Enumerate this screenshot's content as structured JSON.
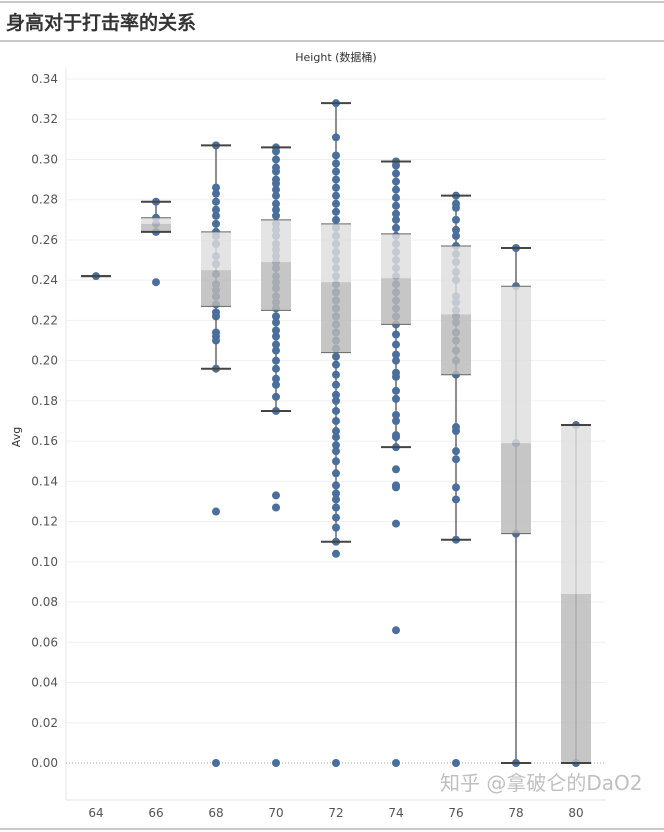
{
  "title": "身高对于打击率的关系",
  "watermark": "知乎 @拿破仑的DaO2",
  "colors": {
    "dot": "#4a6f9c",
    "box_upper": "#dedede",
    "box_lower": "#b9b9b9",
    "whisker": "#444444"
  },
  "chart_data": {
    "type": "boxplot",
    "title": "身高对于打击率的关系",
    "xlabel": "Height (数据桶)",
    "ylabel": "Avg",
    "ylim": [
      -0.02,
      0.34
    ],
    "yticks": [
      "0.00",
      "0.02",
      "0.04",
      "0.06",
      "0.08",
      "0.10",
      "0.12",
      "0.14",
      "0.16",
      "0.18",
      "0.20",
      "0.22",
      "0.24",
      "0.26",
      "0.28",
      "0.30",
      "0.32",
      "0.34"
    ],
    "categories": [
      "64",
      "66",
      "68",
      "70",
      "72",
      "74",
      "76",
      "78",
      "80"
    ],
    "boxes": [
      {
        "cat": "64",
        "lower": 0.242,
        "q1": 0.242,
        "median": 0.242,
        "q3": 0.242,
        "upper": 0.242,
        "points": [
          0.242
        ]
      },
      {
        "cat": "66",
        "lower": 0.264,
        "q1": 0.264,
        "median": 0.268,
        "q3": 0.271,
        "upper": 0.279,
        "points": [
          0.279,
          0.271,
          0.268,
          0.264,
          0.239
        ]
      },
      {
        "cat": "68",
        "lower": 0.196,
        "q1": 0.227,
        "median": 0.245,
        "q3": 0.264,
        "upper": 0.307,
        "points": [
          0.307,
          0.286,
          0.283,
          0.279,
          0.275,
          0.272,
          0.268,
          0.264,
          0.262,
          0.258,
          0.252,
          0.248,
          0.243,
          0.238,
          0.235,
          0.232,
          0.228,
          0.224,
          0.222,
          0.214,
          0.212,
          0.21,
          0.196,
          0.125,
          0
        ]
      },
      {
        "cat": "70",
        "lower": 0.175,
        "q1": 0.225,
        "median": 0.249,
        "q3": 0.27,
        "upper": 0.306,
        "points": [
          0.306,
          0.304,
          0.3,
          0.296,
          0.294,
          0.29,
          0.288,
          0.285,
          0.282,
          0.278,
          0.275,
          0.272,
          0.268,
          0.265,
          0.262,
          0.258,
          0.255,
          0.252,
          0.249,
          0.246,
          0.242,
          0.239,
          0.236,
          0.232,
          0.229,
          0.226,
          0.222,
          0.219,
          0.215,
          0.212,
          0.208,
          0.205,
          0.2,
          0.196,
          0.191,
          0.188,
          0.182,
          0.175,
          0.133,
          0.127,
          0
        ]
      },
      {
        "cat": "72",
        "lower": 0.11,
        "q1": 0.204,
        "median": 0.239,
        "q3": 0.268,
        "upper": 0.328,
        "points": [
          0.328,
          0.311,
          0.302,
          0.298,
          0.294,
          0.29,
          0.286,
          0.282,
          0.278,
          0.274,
          0.27,
          0.266,
          0.262,
          0.258,
          0.254,
          0.25,
          0.246,
          0.242,
          0.238,
          0.234,
          0.23,
          0.226,
          0.222,
          0.218,
          0.214,
          0.21,
          0.206,
          0.202,
          0.198,
          0.193,
          0.188,
          0.183,
          0.18,
          0.175,
          0.17,
          0.165,
          0.162,
          0.158,
          0.155,
          0.15,
          0.144,
          0.138,
          0.134,
          0.131,
          0.127,
          0.122,
          0.117,
          0.11,
          0.104,
          0
        ]
      },
      {
        "cat": "74",
        "lower": 0.157,
        "q1": 0.218,
        "median": 0.241,
        "q3": 0.263,
        "upper": 0.299,
        "points": [
          0.299,
          0.297,
          0.293,
          0.289,
          0.285,
          0.281,
          0.277,
          0.273,
          0.27,
          0.266,
          0.262,
          0.258,
          0.254,
          0.25,
          0.246,
          0.242,
          0.238,
          0.234,
          0.23,
          0.226,
          0.222,
          0.218,
          0.213,
          0.208,
          0.203,
          0.2,
          0.194,
          0.192,
          0.185,
          0.181,
          0.173,
          0.17,
          0.163,
          0.162,
          0.157,
          0.146,
          0.138,
          0.137,
          0.119,
          0.066,
          0
        ]
      },
      {
        "cat": "76",
        "lower": 0.111,
        "q1": 0.193,
        "median": 0.223,
        "q3": 0.257,
        "upper": 0.282,
        "points": [
          0.282,
          0.278,
          0.276,
          0.27,
          0.265,
          0.262,
          0.257,
          0.253,
          0.249,
          0.244,
          0.24,
          0.232,
          0.229,
          0.225,
          0.222,
          0.219,
          0.214,
          0.21,
          0.205,
          0.2,
          0.193,
          0.167,
          0.165,
          0.155,
          0.151,
          0.137,
          0.131,
          0.111,
          0
        ]
      },
      {
        "cat": "78",
        "lower": 0,
        "q1": 0.114,
        "median": 0.159,
        "q3": 0.237,
        "upper": 0.256,
        "points": [
          0.256,
          0.237,
          0.159,
          0.114,
          0
        ]
      },
      {
        "cat": "80",
        "lower": 0,
        "q1": 0,
        "median": 0.084,
        "q3": 0.168,
        "upper": 0.168,
        "points": [
          0.168,
          0
        ]
      }
    ]
  }
}
